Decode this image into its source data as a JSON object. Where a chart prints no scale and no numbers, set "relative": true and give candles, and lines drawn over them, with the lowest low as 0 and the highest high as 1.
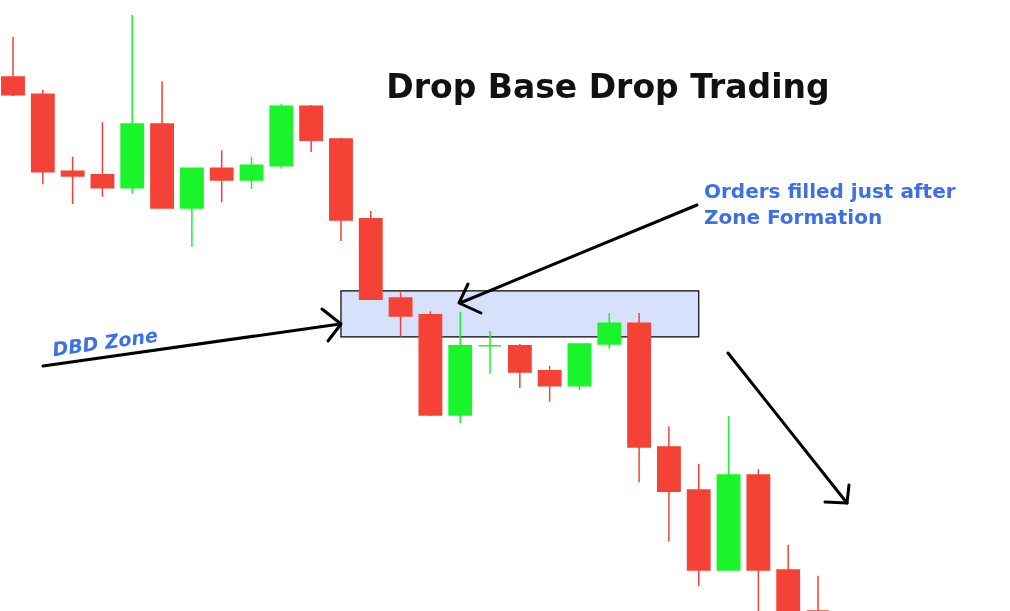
{
  "chart_data": {
    "type": "candlestick",
    "title": "Drop Base Drop Trading",
    "relative": true,
    "categories": [
      null,
      null,
      null,
      null,
      null,
      null,
      null,
      null,
      null,
      null,
      null,
      null,
      null,
      null,
      null,
      null,
      null,
      null,
      null,
      null,
      null,
      null,
      null,
      null,
      null,
      null,
      null,
      null
    ],
    "ohlc": [
      [
        0.896,
        0.963,
        0.864,
        0.866
      ],
      [
        0.867,
        0.874,
        0.716,
        0.737
      ],
      [
        0.738,
        0.762,
        0.683,
        0.73
      ],
      [
        0.732,
        0.82,
        0.695,
        0.71
      ],
      [
        0.71,
        1.0,
        0.7,
        0.817
      ],
      [
        0.817,
        0.889,
        0.676,
        0.676
      ],
      [
        0.676,
        0.743,
        0.611,
        0.743
      ],
      [
        0.743,
        0.773,
        0.686,
        0.723
      ],
      [
        0.723,
        0.762,
        0.708,
        0.748
      ],
      [
        0.747,
        0.851,
        0.742,
        0.847
      ],
      [
        0.847,
        0.849,
        0.77,
        0.79
      ],
      [
        0.792,
        0.794,
        0.621,
        0.656
      ],
      [
        0.658,
        0.671,
        0.522,
        0.523
      ],
      [
        0.525,
        0.535,
        0.46,
        0.495
      ],
      [
        0.497,
        0.503,
        0.327,
        0.329
      ],
      [
        0.329,
        0.502,
        0.315,
        0.445
      ],
      [
        0.445,
        0.47,
        0.398,
        0.445
      ],
      [
        0.445,
        0.448,
        0.374,
        0.401
      ],
      [
        0.403,
        0.411,
        0.351,
        0.378
      ],
      [
        0.378,
        0.448,
        0.371,
        0.448
      ],
      [
        0.448,
        0.5,
        0.44,
        0.483
      ],
      [
        0.483,
        0.5,
        0.216,
        0.275
      ],
      [
        0.275,
        0.31,
        0.116,
        0.201
      ],
      [
        0.203,
        0.247,
        0.042,
        0.069
      ],
      [
        0.069,
        0.327,
        0.069,
        0.228
      ],
      [
        0.228,
        0.238,
        0,
        0.069
      ],
      [
        0.069,
        0.111,
        0,
        0
      ],
      [
        0,
        0.059,
        0,
        0
      ]
    ],
    "colors": [
      "#f44336",
      "#f44336",
      "#f44336",
      "#f44336",
      "#19f52a",
      "#f44336",
      "#19f52a",
      "#f44336",
      "#19f52a",
      "#19f52a",
      "#f44336",
      "#f44336",
      "#f44336",
      "#f44336",
      "#f44336",
      "#19f52a",
      "#19f52a",
      "#f44336",
      "#f44336",
      "#19f52a",
      "#19f52a",
      "#f44336",
      "#f44336",
      "#f44336",
      "#19f52a",
      "#f44336",
      "#f44336",
      "#f44336"
    ],
    "bands": [
      {
        "axis": "y",
        "from": 0.46,
        "to": 0.537,
        "label": "DBD Zone",
        "color": "#d8e1fb"
      }
    ],
    "annotations": [
      "Orders filled just after Zone Formation"
    ]
  }
}
